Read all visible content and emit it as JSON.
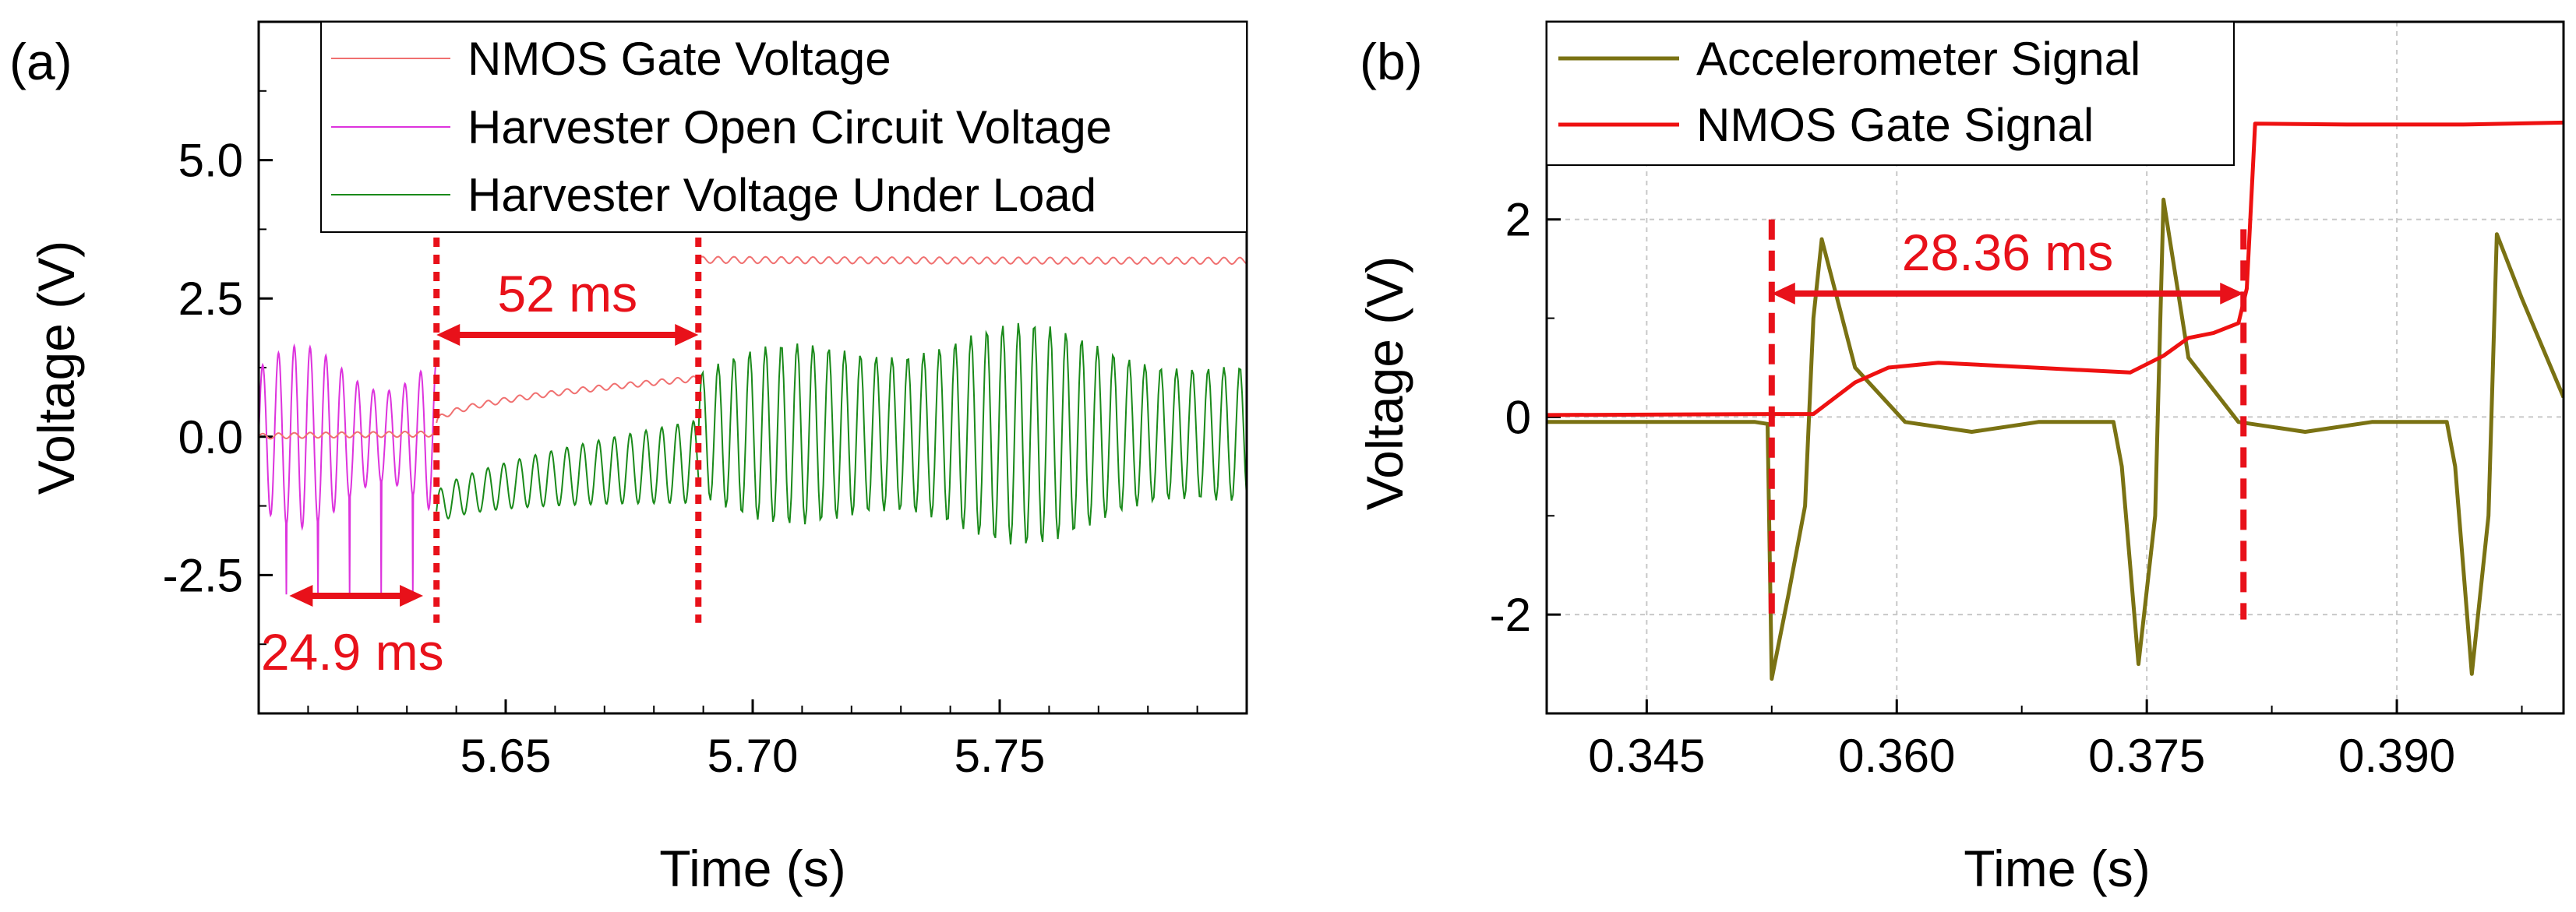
{
  "chart_data": [
    {
      "type": "line",
      "panel_label": "(a)",
      "xlabel": "Time (s)",
      "ylabel": "Voltage (V)",
      "xlim": [
        5.6,
        5.8
      ],
      "ylim": [
        -5.0,
        7.5
      ],
      "xticks": [
        5.65,
        5.7,
        5.75
      ],
      "xtick_labels": [
        "5.65",
        "5.70",
        "5.75"
      ],
      "yticks": [
        -2.5,
        0.0,
        2.5,
        5.0
      ],
      "ytick_labels": [
        "-2.5",
        "0.0",
        "2.5",
        "5.0"
      ],
      "grid": false,
      "legend_position": "top-right",
      "series": [
        {
          "name": "NMOS Gate Voltage",
          "color": "#f07070",
          "segments": [
            {
              "x_start": 5.6,
              "x_end": 5.636,
              "level_start": 0.0,
              "level_end": 0.05,
              "oscillation": 0.05
            },
            {
              "x_start": 5.636,
              "x_end": 5.689,
              "level_start": 0.25,
              "level_end": 1.05,
              "oscillation": 0.05
            },
            {
              "x_start": 5.689,
              "x_end": 5.8,
              "level_start": 3.2,
              "level_end": 3.18,
              "oscillation": 0.06
            }
          ]
        },
        {
          "name": "Harvester Open Circuit Voltage",
          "color": "#dd33dd",
          "segments": [
            {
              "x_start": 5.6,
              "x_end": 5.636,
              "center": 0.0,
              "amplitude": 1.65,
              "period_ms": 3.2,
              "min": -2.85
            }
          ]
        },
        {
          "name": "Harvester Voltage Under Load",
          "color": "#1a8a1a",
          "segments": [
            {
              "x_start": 5.636,
              "x_end": 5.689,
              "center_start": -1.35,
              "center_end": -0.45,
              "amplitude_start": 0.3,
              "amplitude_end": 0.75,
              "period_ms": 3.2
            },
            {
              "x_start": 5.689,
              "x_end": 5.8,
              "center": 0.05,
              "amplitude_start": 1.3,
              "amplitude_peak": 2.25,
              "amplitude_end": 1.4,
              "period_ms": 3.2
            }
          ]
        }
      ],
      "annotations": [
        {
          "text": "52 ms",
          "x_start": 5.636,
          "x_end": 5.689,
          "y": 1.8
        },
        {
          "text": "24.9 ms",
          "x_start": 5.607,
          "x_end": 5.6325,
          "y": -2.9
        }
      ],
      "markers": [
        {
          "x": 5.636,
          "y_from": -2.8,
          "y_to": 3.6
        },
        {
          "x": 5.689,
          "y_from": -2.8,
          "y_to": 3.6
        }
      ]
    },
    {
      "type": "line",
      "panel_label": "(b)",
      "xlabel": "Time (s)",
      "ylabel": "Voltage (V)",
      "xlim": [
        0.339,
        0.4
      ],
      "ylim": [
        -3.0,
        4.0
      ],
      "xticks": [
        0.345,
        0.36,
        0.375,
        0.39
      ],
      "xtick_labels": [
        "0.345",
        "0.360",
        "0.375",
        "0.390"
      ],
      "yticks": [
        -2,
        0,
        2
      ],
      "ytick_labels": [
        "-2",
        "0",
        "2"
      ],
      "grid": true,
      "legend_position": "top-left",
      "series": [
        {
          "name": "Accelerometer Signal",
          "color": "#7a7213",
          "x": [
            0.339,
            0.3515,
            0.35225,
            0.3525,
            0.3535,
            0.3545,
            0.355,
            0.3555,
            0.3575,
            0.3605,
            0.3645,
            0.3685,
            0.373,
            0.3735,
            0.3745,
            0.3755,
            0.376,
            0.3775,
            0.3805,
            0.3845,
            0.3885,
            0.393,
            0.3935,
            0.3945,
            0.3955,
            0.396,
            0.3975,
            0.4
          ],
          "y": [
            -0.05,
            -0.05,
            -0.07,
            -2.65,
            -1.8,
            -0.9,
            1.0,
            1.8,
            0.5,
            -0.05,
            -0.15,
            -0.05,
            -0.05,
            -0.5,
            -2.5,
            -1.0,
            2.2,
            0.6,
            -0.05,
            -0.15,
            -0.05,
            -0.05,
            -0.5,
            -2.6,
            -1.0,
            1.85,
            1.2,
            0.2
          ]
        },
        {
          "name": "NMOS Gate Signal",
          "color": "#ee1111",
          "x": [
            0.339,
            0.3525,
            0.355,
            0.3575,
            0.3595,
            0.3625,
            0.366,
            0.3705,
            0.374,
            0.376,
            0.3775,
            0.379,
            0.3805,
            0.381,
            0.3815,
            0.387,
            0.394,
            0.4
          ],
          "y": [
            0.02,
            0.03,
            0.03,
            0.35,
            0.5,
            0.55,
            0.52,
            0.48,
            0.45,
            0.62,
            0.8,
            0.85,
            0.95,
            1.3,
            2.97,
            2.96,
            2.96,
            2.98
          ]
        }
      ],
      "annotations": [
        {
          "text": "28.36 ms",
          "x_start": 0.3525,
          "x_end": 0.3808,
          "y": 1.25
        }
      ],
      "markers": [
        {
          "x": 0.3525,
          "y_from": -2.05,
          "y_to": 2.0
        },
        {
          "x": 0.3808,
          "y_from": -2.05,
          "y_to": 1.9
        }
      ]
    }
  ]
}
